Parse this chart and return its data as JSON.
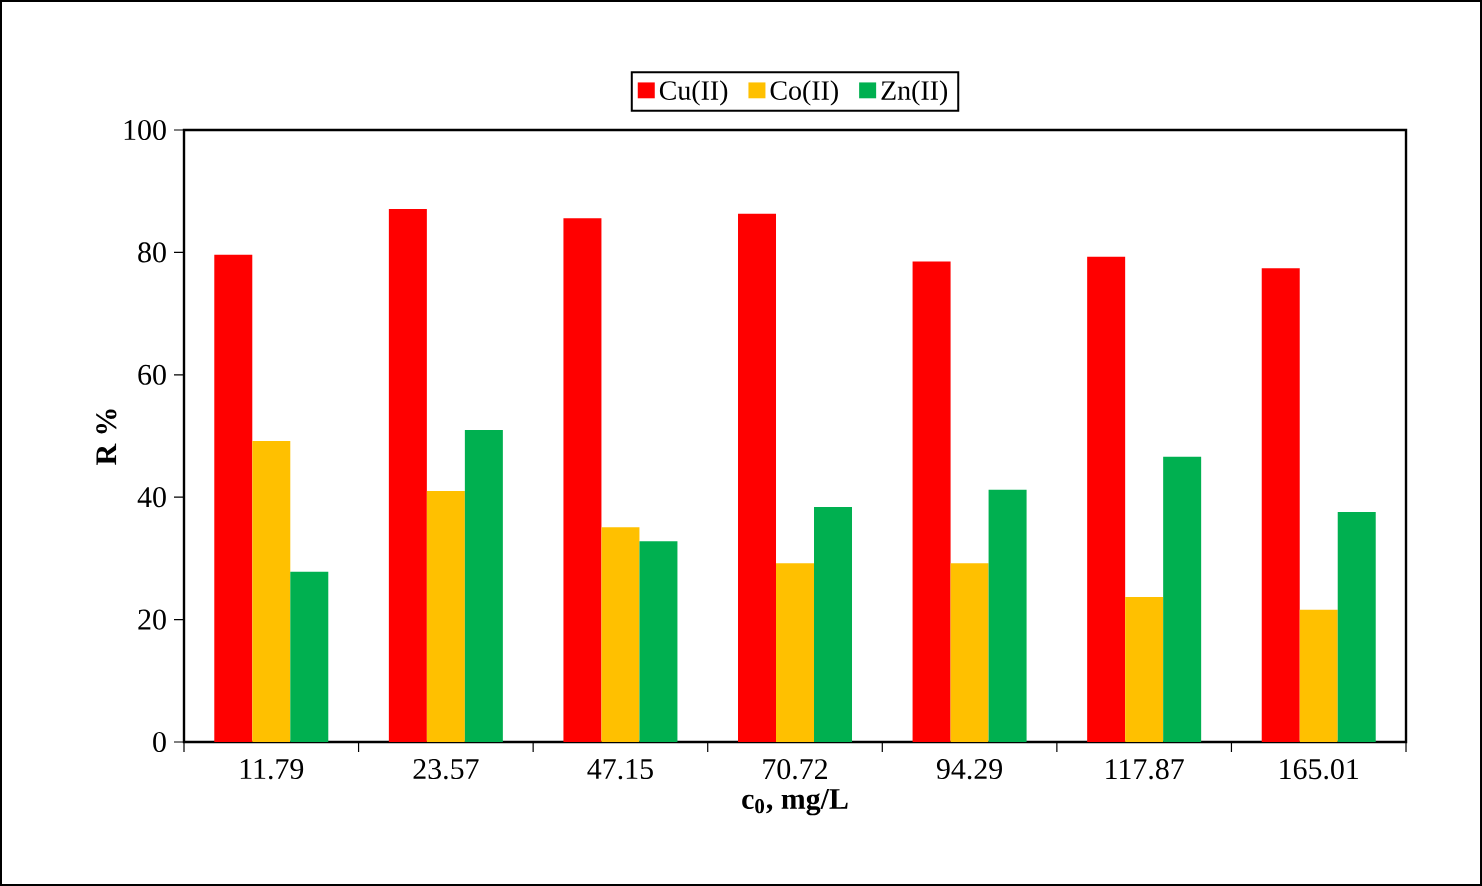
{
  "chart_data": {
    "type": "bar",
    "xlabel": "c$_{0}$, mg/L",
    "ylabel": "R %",
    "categories": [
      "11.79",
      "23.57",
      "47.15",
      "70.72",
      "94.29",
      "117.87",
      "165.01"
    ],
    "series": [
      {
        "name": "Cu(II)",
        "color": "#ff0000",
        "values": [
          79.6,
          87.1,
          85.6,
          86.3,
          78.5,
          79.3,
          77.4
        ]
      },
      {
        "name": "Co(II)",
        "color": "#ffc000",
        "values": [
          49.2,
          41.0,
          35.1,
          29.2,
          29.2,
          23.7,
          21.6
        ]
      },
      {
        "name": "Zn(II)",
        "color": "#00b050",
        "values": [
          27.8,
          51.0,
          32.8,
          38.4,
          41.2,
          46.6,
          37.6
        ]
      }
    ],
    "ylim": [
      0,
      100
    ],
    "yticks": [
      0,
      20,
      40,
      60,
      80,
      100
    ],
    "grid": false,
    "legend": "top"
  }
}
